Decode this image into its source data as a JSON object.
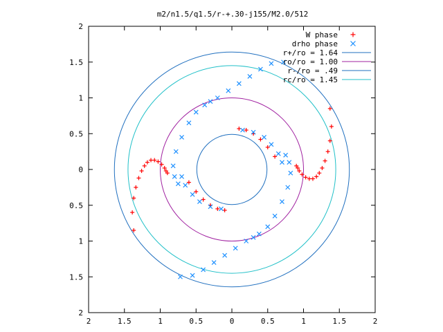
{
  "chart_data": {
    "type": "scatter",
    "title": "m2/n1.5/q1.5/r-+.30-j155/M2.0/512",
    "xlim": [
      -2,
      2
    ],
    "ylim": [
      -2,
      2
    ],
    "x_ticks": [
      -2,
      -1.5,
      -1,
      -0.5,
      0,
      0.5,
      1,
      1.5,
      2
    ],
    "x_tick_labels": [
      "2",
      "1.5",
      "1",
      "0.5",
      "0",
      "0.5",
      "1",
      "1.5",
      "2"
    ],
    "y_ticks": [
      2,
      1.5,
      1,
      0.5,
      0,
      -0.5,
      -1,
      -1.5,
      -2
    ],
    "y_tick_labels": [
      "2",
      "1.5",
      "1",
      "0.5",
      "0",
      "0.5",
      "1",
      "1.5",
      "2"
    ],
    "grid": false,
    "legend_position": "top-right",
    "series": [
      {
        "name": "W phase",
        "kind": "points",
        "marker": "plus",
        "color": "#ff0000",
        "x": [
          1.37,
          1.39,
          1.37,
          1.34,
          1.3,
          1.26,
          1.22,
          1.18,
          1.13,
          1.08,
          1.03,
          0.98,
          0.94,
          0.92,
          0.9,
          -1.37,
          -1.39,
          -1.37,
          -1.34,
          -1.3,
          -1.26,
          -1.22,
          -1.18,
          -1.13,
          -1.08,
          -1.03,
          -0.98,
          -0.94,
          -0.92,
          -0.9,
          0.1,
          0.2,
          0.3,
          0.4,
          0.5,
          0.6,
          -0.1,
          -0.2,
          -0.3,
          -0.4,
          -0.5,
          -0.6
        ],
        "y": [
          0.85,
          0.6,
          0.4,
          0.25,
          0.12,
          0.02,
          -0.05,
          -0.1,
          -0.13,
          -0.13,
          -0.11,
          -0.07,
          -0.02,
          0.02,
          0.05,
          -0.85,
          -0.6,
          -0.4,
          -0.25,
          -0.12,
          -0.02,
          0.05,
          0.1,
          0.13,
          0.13,
          0.11,
          0.07,
          0.02,
          -0.02,
          -0.05,
          0.57,
          0.55,
          0.5,
          0.42,
          0.31,
          0.18,
          -0.57,
          -0.55,
          -0.5,
          -0.42,
          -0.31,
          -0.18
        ]
      },
      {
        "name": "drho phase",
        "kind": "points",
        "marker": "cross",
        "color": "#1e90ff",
        "x": [
          0.72,
          0.55,
          0.4,
          0.25,
          0.1,
          -0.05,
          -0.2,
          -0.3,
          -0.38,
          -0.5,
          -0.6,
          -0.7,
          -0.78,
          -0.82,
          -0.8,
          -0.75,
          -0.72,
          -0.55,
          -0.4,
          -0.25,
          -0.1,
          0.05,
          0.2,
          0.3,
          0.38,
          0.5,
          0.6,
          0.7,
          0.78,
          0.82,
          0.8,
          0.75,
          -0.15,
          -0.3,
          -0.45,
          -0.55,
          -0.65,
          -0.7,
          0.15,
          0.3,
          0.45,
          0.55,
          0.65,
          0.7
        ],
        "y": [
          1.5,
          1.48,
          1.4,
          1.3,
          1.2,
          1.1,
          1.0,
          0.95,
          0.9,
          0.8,
          0.65,
          0.45,
          0.25,
          0.05,
          -0.1,
          -0.2,
          -1.5,
          -1.48,
          -1.4,
          -1.3,
          -1.2,
          -1.1,
          -1.0,
          -0.95,
          -0.9,
          -0.8,
          -0.65,
          -0.45,
          -0.25,
          -0.05,
          0.1,
          0.2,
          -0.55,
          -0.52,
          -0.45,
          -0.35,
          -0.22,
          -0.1,
          0.55,
          0.52,
          0.45,
          0.35,
          0.22,
          0.1
        ]
      },
      {
        "name": "r+/ro = 1.64",
        "kind": "circle",
        "radius": 1.64,
        "color": "#1f6fbf"
      },
      {
        "name": "ro/ro = 1.00",
        "kind": "circle",
        "radius": 1.0,
        "color": "#a020a0"
      },
      {
        "name": "r-/ro = .49",
        "kind": "circle",
        "radius": 0.49,
        "color": "#1f6fbf"
      },
      {
        "name": "rc/ro = 1.45",
        "kind": "circle",
        "radius": 1.45,
        "color": "#20c0c8"
      }
    ]
  }
}
